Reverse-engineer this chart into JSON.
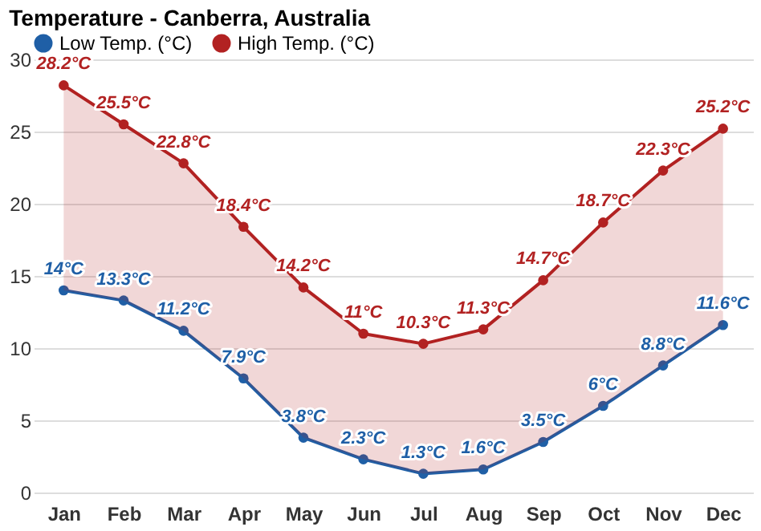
{
  "chart_data": {
    "type": "line",
    "title": "Temperature - Canberra, Australia",
    "categories": [
      "Jan",
      "Feb",
      "Mar",
      "Apr",
      "May",
      "Jun",
      "Jul",
      "Aug",
      "Sep",
      "Oct",
      "Nov",
      "Dec"
    ],
    "series": [
      {
        "name": "Low Temp. (°C)",
        "color": "#1f5fa6",
        "values": [
          14,
          13.3,
          11.2,
          7.9,
          3.8,
          2.3,
          1.3,
          1.6,
          3.5,
          6,
          8.8,
          11.6
        ],
        "value_labels": [
          "14°C",
          "13.3°C",
          "11.2°C",
          "7.9°C",
          "3.8°C",
          "2.3°C",
          "1.3°C",
          "1.6°C",
          "3.5°C",
          "6°C",
          "8.8°C",
          "11.6°C"
        ]
      },
      {
        "name": "High Temp. (°C)",
        "color": "#b22222",
        "values": [
          28.2,
          25.5,
          22.8,
          18.4,
          14.2,
          11,
          10.3,
          11.3,
          14.7,
          18.7,
          22.3,
          25.2
        ],
        "value_labels": [
          "28.2°C",
          "25.5°C",
          "22.8°C",
          "18.4°C",
          "14.2°C",
          "11°C",
          "10.3°C",
          "11.3°C",
          "14.7°C",
          "18.7°C",
          "22.3°C",
          "25.2°C"
        ],
        "lower": [
          14,
          13.3,
          11.2,
          7.9,
          3.8,
          2.3,
          1.3,
          1.6,
          3.5,
          6,
          8.8,
          11.6
        ],
        "upper": [
          28.2,
          25.5,
          22.8,
          18.4,
          14.2,
          11,
          10.3,
          11.3,
          14.7,
          18.7,
          22.3,
          25.2
        ]
      }
    ],
    "ylim": [
      0,
      30
    ],
    "yticks": [
      0,
      5,
      10,
      15,
      20,
      25,
      30
    ],
    "grid": "y",
    "legend": "top",
    "marker": "circle",
    "line_style": "solid"
  }
}
